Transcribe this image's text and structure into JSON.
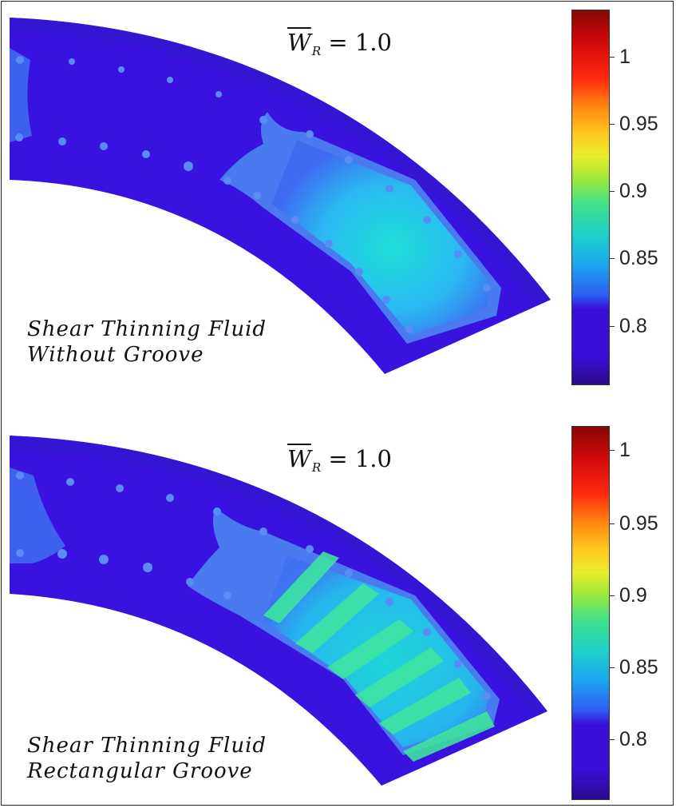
{
  "figure": {
    "panels": [
      {
        "load_label": {
          "symbol": "W",
          "subscript": "R",
          "equals": "= 1.0"
        },
        "caption": [
          "Shear Thinning Fluid",
          "Without Groove"
        ],
        "colorbar_ticks": [
          "1",
          "0.95",
          "0.9",
          "0.85",
          "0.8"
        ],
        "groove": "none"
      },
      {
        "load_label": {
          "symbol": "W",
          "subscript": "R",
          "equals": "= 1.0"
        },
        "caption": [
          "Shear Thinning Fluid",
          "Rectangular Groove"
        ],
        "colorbar_ticks": [
          "1",
          "0.95",
          "0.9",
          "0.85",
          "0.8"
        ],
        "groove": "rectangular"
      }
    ],
    "colors": {
      "background_field": "#3a12e0",
      "low_pad": "#3f66f0",
      "pressure_zone": "#22c8ee",
      "groove_stripe": "#3fe4a0",
      "colormap": "jet"
    }
  }
}
